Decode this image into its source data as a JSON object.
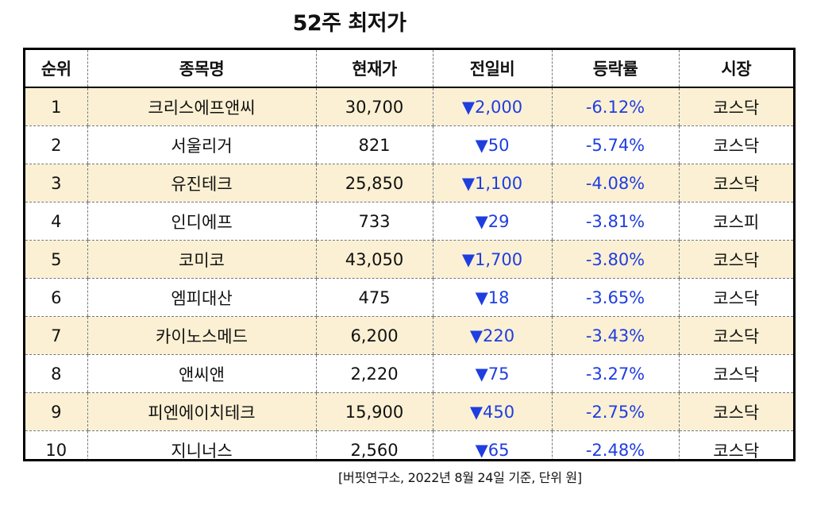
{
  "title": "52주 최저가",
  "table": {
    "headers": [
      "순위",
      "종목명",
      "현재가",
      "전일비",
      "등락률",
      "시장"
    ],
    "rows": [
      {
        "rank": "1",
        "name": "크리스에프앤씨",
        "price": "30,700",
        "change": "▼2,000",
        "rate": "-6.12%",
        "market": "코스닥"
      },
      {
        "rank": "2",
        "name": "서울리거",
        "price": "821",
        "change": "▼50",
        "rate": "-5.74%",
        "market": "코스닥"
      },
      {
        "rank": "3",
        "name": "유진테크",
        "price": "25,850",
        "change": "▼1,100",
        "rate": "-4.08%",
        "market": "코스닥"
      },
      {
        "rank": "4",
        "name": "인디에프",
        "price": "733",
        "change": "▼29",
        "rate": "-3.81%",
        "market": "코스피"
      },
      {
        "rank": "5",
        "name": "코미코",
        "price": "43,050",
        "change": "▼1,700",
        "rate": "-3.80%",
        "market": "코스닥"
      },
      {
        "rank": "6",
        "name": "엠피대산",
        "price": "475",
        "change": "▼18",
        "rate": "-3.65%",
        "market": "코스닥"
      },
      {
        "rank": "7",
        "name": "카이노스메드",
        "price": "6,200",
        "change": "▼220",
        "rate": "-3.43%",
        "market": "코스닥"
      },
      {
        "rank": "8",
        "name": "앤씨앤",
        "price": "2,220",
        "change": "▼75",
        "rate": "-3.27%",
        "market": "코스닥"
      },
      {
        "rank": "9",
        "name": "피엔에이치테크",
        "price": "15,900",
        "change": "▼450",
        "rate": "-2.75%",
        "market": "코스닥"
      },
      {
        "rank": "10",
        "name": "지니너스",
        "price": "2,560",
        "change": "▼65",
        "rate": "-2.48%",
        "market": "코스닥"
      }
    ]
  },
  "source_note": "[버핏연구소, 2022년 8월 24일 기준, 단위 원]",
  "colors": {
    "alt_row_bg": "#fbf0d3",
    "down_color": "#1f3ee0"
  }
}
